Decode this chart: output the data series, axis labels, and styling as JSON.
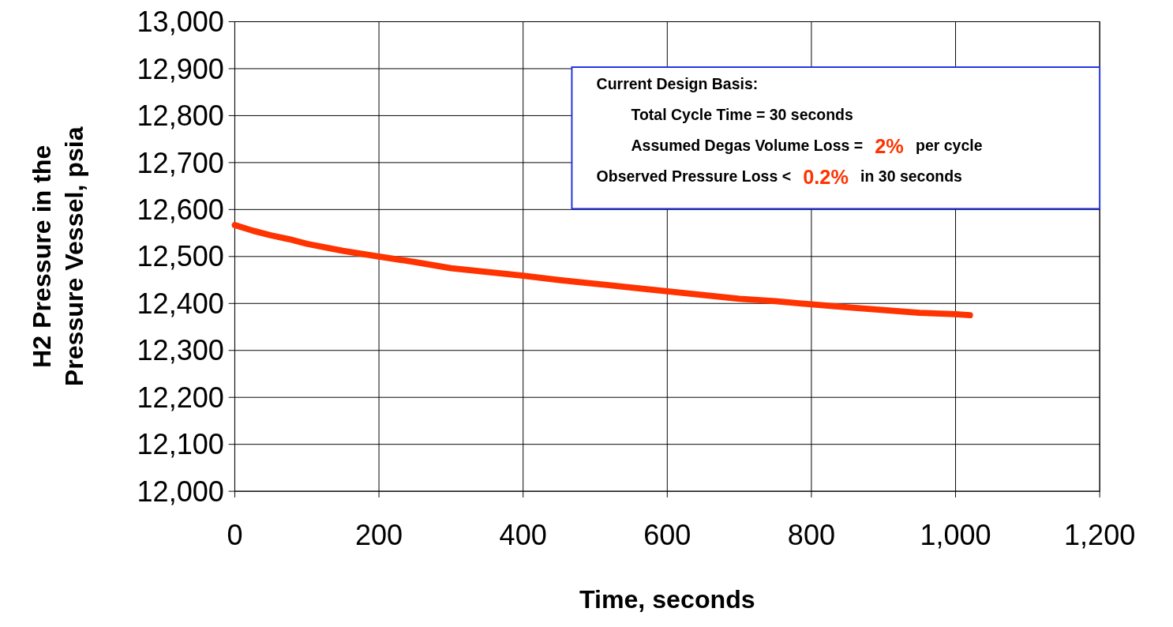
{
  "chart_data": {
    "type": "line",
    "xlabel": "Time, seconds",
    "ylabel": "H2 Pressure in the Pressure Vessel, psia",
    "x": [
      0,
      25,
      50,
      75,
      100,
      150,
      200,
      250,
      300,
      350,
      400,
      450,
      500,
      550,
      600,
      650,
      700,
      750,
      800,
      850,
      900,
      950,
      1000,
      1020
    ],
    "series": [
      {
        "color": "#ff3300",
        "values": [
          12567,
          12555,
          12545,
          12537,
          12527,
          12512,
          12500,
          12488,
          12475,
          12467,
          12459,
          12450,
          12442,
          12434,
          12426,
          12418,
          12410,
          12405,
          12398,
          12392,
          12386,
          12380,
          12377,
          12375
        ]
      }
    ],
    "xlim": [
      0,
      1200
    ],
    "xticks": [
      {
        "value": 0,
        "label": "0"
      },
      {
        "value": 200,
        "label": "200"
      },
      {
        "value": 400,
        "label": "400"
      },
      {
        "value": 600,
        "label": "600"
      },
      {
        "value": 800,
        "label": "800"
      },
      {
        "value": 1000,
        "label": "1,000"
      },
      {
        "value": 1200,
        "label": "1,200"
      }
    ],
    "ylim": [
      12000,
      13000
    ],
    "yticks": [
      {
        "value": 12000,
        "label": "12,000"
      },
      {
        "value": 12100,
        "label": "12,100"
      },
      {
        "value": 12200,
        "label": "12,200"
      },
      {
        "value": 12300,
        "label": "12,300"
      },
      {
        "value": 12400,
        "label": "12,400"
      },
      {
        "value": 12500,
        "label": "12,500"
      },
      {
        "value": 12600,
        "label": "12,600"
      },
      {
        "value": 12700,
        "label": "12,700"
      },
      {
        "value": 12800,
        "label": "12,800"
      },
      {
        "value": 12900,
        "label": "12,900"
      },
      {
        "value": 13000,
        "label": "13,000"
      }
    ],
    "grid": true,
    "line_style": "solid",
    "annotations": [
      "Current Design Basis:",
      "Total Cycle Time = 30 seconds",
      "Assumed Degas Volume Loss = 2% per cycle",
      "Observed Pressure Loss < 0.2% in 30 seconds"
    ]
  }
}
